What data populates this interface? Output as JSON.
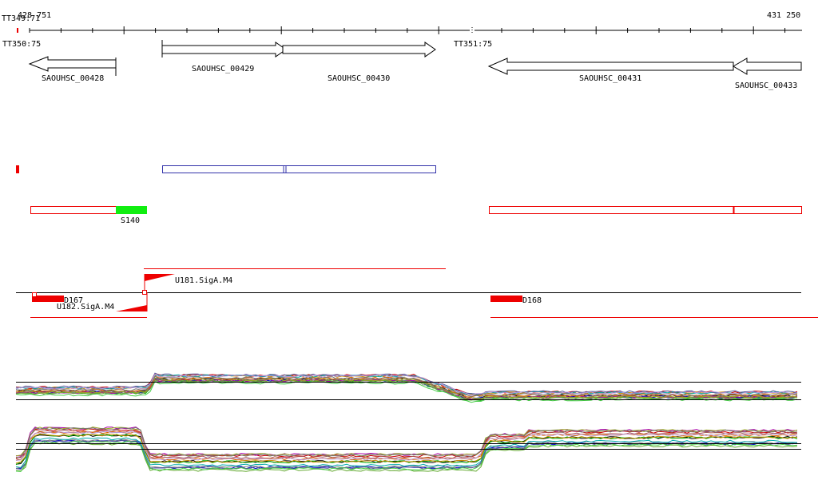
{
  "ruler": {
    "start": "428 751",
    "end": "431 250",
    "marker": "TT349:71"
  },
  "terminators": [
    "TT350:75",
    "TT351:75"
  ],
  "genes": [
    {
      "label": "SAOUHSC_00428"
    },
    {
      "label": "SAOUHSC_00429"
    },
    {
      "label": "SAOUHSC_00430"
    },
    {
      "label": "SAOUHSC_00431"
    },
    {
      "label": "SAOUHSC_00433"
    }
  ],
  "features": [
    {
      "label": "S140"
    },
    {
      "label": "U181.SigA.M4"
    },
    {
      "label": "D167"
    },
    {
      "label": "U182.SigA.M4"
    },
    {
      "label": "D168"
    }
  ]
}
